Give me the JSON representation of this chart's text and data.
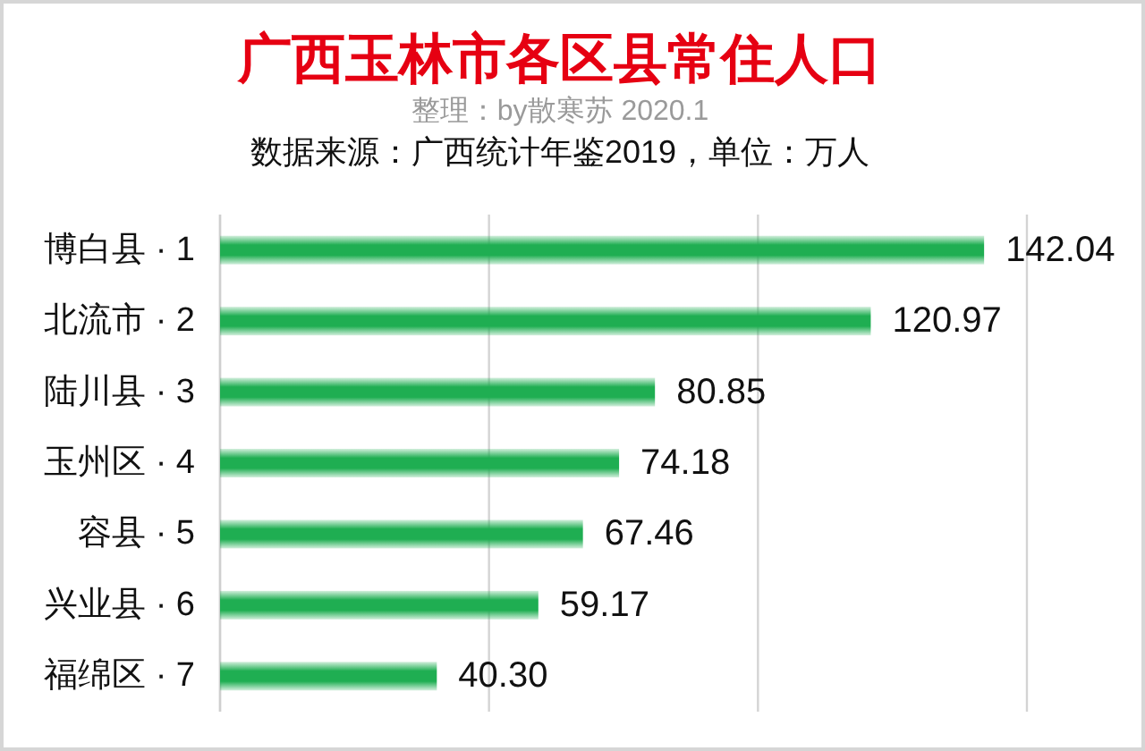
{
  "chart_data": {
    "type": "bar",
    "orientation": "horizontal",
    "title": "广西玉林市各区县常住人口",
    "subtitle": "整理：by散寒苏 2020.1",
    "annotations": [
      "数据来源：广西统计年鉴2019，单位：万人"
    ],
    "categories": [
      "博白县 · 1",
      "北流市 · 2",
      "陆川县 · 3",
      "玉州区 · 4",
      "容县 · 5",
      "兴业县 · 6",
      "福绵区 · 7"
    ],
    "values": [
      142.04,
      120.97,
      80.85,
      74.18,
      67.46,
      59.17,
      40.3
    ],
    "value_labels": [
      "142.04",
      "120.97",
      "80.85",
      "74.18",
      "67.46",
      "59.17",
      "40.30"
    ],
    "color": "#1fae52",
    "xlim": [
      0,
      150
    ],
    "xticks": [
      {
        "value": 0,
        "label": null
      },
      {
        "value": 50,
        "label": null
      },
      {
        "value": 100,
        "label": null
      },
      {
        "value": 150,
        "label": null
      }
    ],
    "grid": "x",
    "tick_labels": "y"
  }
}
